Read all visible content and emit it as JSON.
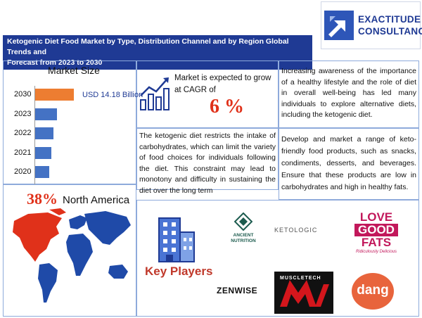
{
  "header": {
    "title_line1": "Ketogenic Diet Food Market by Type, Distribution Channel and by Region Global Trends and",
    "title_line2": "Forecast from 2023 to 2030"
  },
  "logo": {
    "line1": "EXACTITUDE",
    "line2": "CONSULTANCY"
  },
  "market_size": {
    "title": "Market Size",
    "highlight_value": "USD 14.18 Billion"
  },
  "chart_data": {
    "type": "bar",
    "orientation": "horizontal",
    "title": "Market Size",
    "categories": [
      "2030",
      "2023",
      "2022",
      "2021",
      "2020"
    ],
    "values": [
      14.18,
      7.9,
      6.8,
      5.9,
      5.2
    ],
    "highlight_category": "2030",
    "colors": {
      "highlight": "#ed7d31",
      "bar": "#4472c4"
    }
  },
  "cagr": {
    "text": "Market is expected to grow at CAGR of",
    "value": "6 %"
  },
  "drivers": {
    "text": "Increasing awareness of the importance of a healthy lifestyle and the role of diet in overall well-being has led many individuals to explore alternative diets, including the ketogenic diet."
  },
  "restraints": {
    "text": "The ketogenic diet restricts the intake of carbohydrates, which can limit the variety of food choices for individuals following the diet. This constraint may lead to monotony and difficulty in sustaining the diet over the long term"
  },
  "opportunities": {
    "text": "Develop and market a range of keto-friendly food products, such as snacks, condiments, desserts, and beverages. Ensure that these products are low in carbohydrates and high in healthy fats."
  },
  "region": {
    "percent": "38%",
    "name": "North America"
  },
  "key_players": {
    "label": "Key Players",
    "brands": {
      "ancient_line1": "ANCIENT",
      "ancient_line2": "NUTRITION",
      "ketologic": "KETOLOGIC",
      "lgf_line1": "LOVE",
      "lgf_line2": "GOOD",
      "lgf_line3": "FATS",
      "lgf_tag": "Ridiculously Delicious",
      "zenwise": "ZENWISE",
      "muscletech": "MUSCLETECH",
      "dang": "dang"
    }
  },
  "colors": {
    "accent_orange": "#ed7d31",
    "bar_blue": "#4472c4",
    "header_blue": "#1f3a94",
    "red": "#e0311a"
  }
}
